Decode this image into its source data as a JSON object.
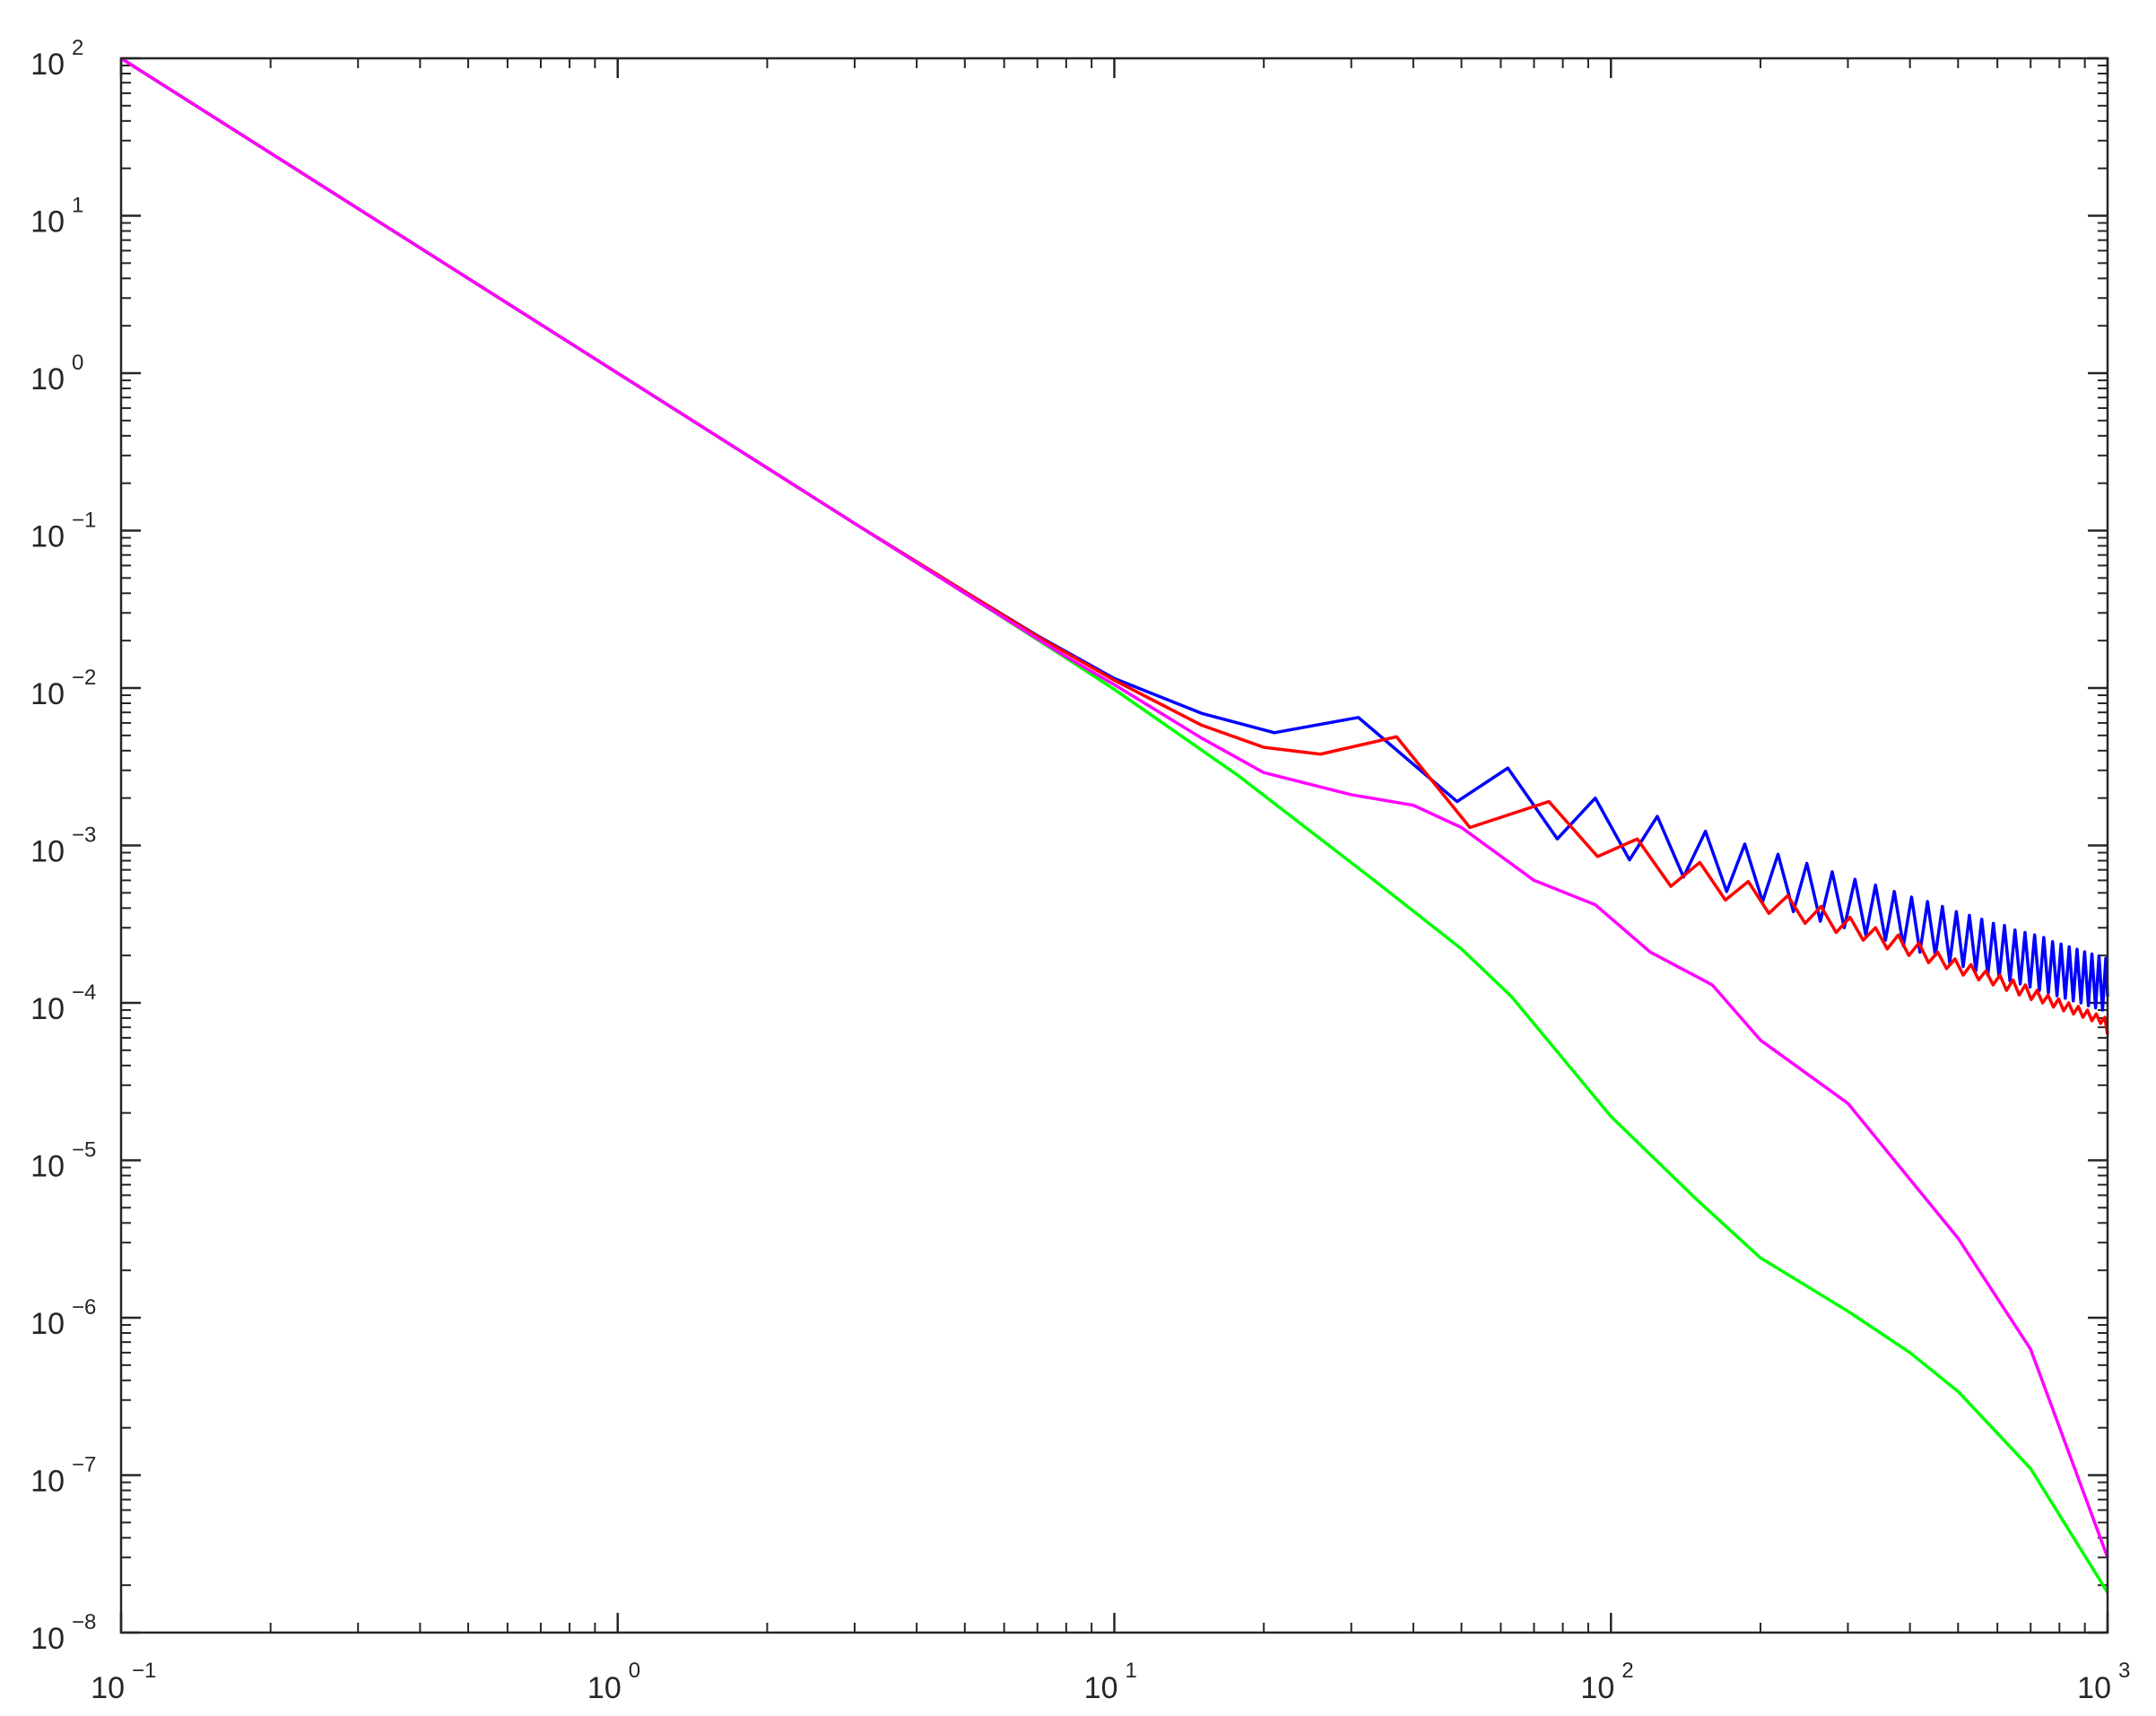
{
  "chart_data": {
    "type": "line",
    "log_x": true,
    "log_y": true,
    "grid": false,
    "xlim": [
      0.1,
      1000
    ],
    "ylim": [
      1e-08,
      100
    ],
    "xticks": [
      {
        "value": 0.1,
        "label": "10",
        "exponent": "−1"
      },
      {
        "value": 1,
        "label": "10",
        "exponent": "0"
      },
      {
        "value": 10,
        "label": "10",
        "exponent": "1"
      },
      {
        "value": 100,
        "label": "10",
        "exponent": "2"
      },
      {
        "value": 1000,
        "label": "10",
        "exponent": "3"
      }
    ],
    "yticks": [
      {
        "value": 1e-08,
        "label": "10",
        "exponent": "−8"
      },
      {
        "value": 1e-07,
        "label": "10",
        "exponent": "−7"
      },
      {
        "value": 1e-06,
        "label": "10",
        "exponent": "−6"
      },
      {
        "value": 1e-05,
        "label": "10",
        "exponent": "−5"
      },
      {
        "value": 0.0001,
        "label": "10",
        "exponent": "−4"
      },
      {
        "value": 0.001,
        "label": "10",
        "exponent": "−3"
      },
      {
        "value": 0.01,
        "label": "10",
        "exponent": "−2"
      },
      {
        "value": 0.1,
        "label": "10",
        "exponent": "−1"
      },
      {
        "value": 1,
        "label": "10",
        "exponent": "0"
      },
      {
        "value": 10,
        "label": "10",
        "exponent": "1"
      },
      {
        "value": 100,
        "label": "10",
        "exponent": "2"
      }
    ],
    "xminorticks": [
      0.2,
      0.3,
      0.4,
      0.5,
      0.6,
      0.7,
      0.8,
      0.9,
      2,
      3,
      4,
      5,
      6,
      7,
      8,
      9,
      20,
      30,
      40,
      50,
      60,
      70,
      80,
      90,
      200,
      300,
      400,
      500,
      600,
      700,
      800,
      900
    ],
    "yminorticks": [
      2e-08,
      3e-08,
      4e-08,
      5e-08,
      6e-08,
      7e-08,
      8e-08,
      9e-08,
      2e-07,
      3e-07,
      4e-07,
      5e-07,
      6e-07,
      7e-07,
      8e-07,
      9e-07,
      2e-06,
      3e-06,
      4e-06,
      5e-06,
      6e-06,
      7e-06,
      8e-06,
      9e-06,
      2e-05,
      3e-05,
      4e-05,
      5e-05,
      6e-05,
      7e-05,
      8e-05,
      9e-05,
      0.0002,
      0.0003,
      0.0004,
      0.0005,
      0.0006,
      0.0007,
      0.0008,
      0.0009,
      0.002,
      0.003,
      0.004,
      0.005,
      0.006,
      0.007,
      0.008,
      0.009,
      0.02,
      0.03,
      0.04,
      0.05,
      0.06,
      0.07,
      0.08,
      0.09,
      0.2,
      0.3,
      0.4,
      0.5,
      0.6,
      0.7,
      0.8,
      0.9,
      2,
      3,
      4,
      5,
      6,
      7,
      8,
      9,
      20,
      30,
      40,
      50,
      60,
      70,
      80,
      90
    ],
    "series": [
      {
        "color": "#0000ff",
        "x": [
          0.1,
          0.2,
          0.5,
          1,
          2,
          3,
          5,
          7,
          10,
          15,
          21,
          31,
          49,
          62,
          78,
          93,
          109,
          124,
          140,
          155,
          171,
          186,
          202,
          217,
          233,
          248,
          264,
          279,
          295,
          310,
          326,
          341,
          357,
          372,
          388,
          403,
          419,
          434,
          450,
          465,
          481,
          496,
          512,
          527,
          543,
          558,
          574,
          589,
          605,
          620,
          636,
          651,
          667,
          682,
          698,
          713,
          729,
          744,
          760,
          775,
          791,
          806,
          822,
          837,
          853,
          868,
          884,
          899,
          915,
          930,
          946,
          961,
          977,
          992,
          1000
        ],
        "values": [
          100,
          25,
          4,
          1,
          0.25,
          0.111,
          0.041,
          0.0215,
          0.0115,
          0.0069,
          0.0052,
          0.0065,
          0.0019,
          0.0031,
          0.0011,
          0.002,
          0.00081,
          0.00153,
          0.00063,
          0.00123,
          0.00051,
          0.00102,
          0.00044,
          0.00088,
          0.00038,
          0.00077,
          0.00033,
          0.00068,
          0.0003,
          0.00061,
          0.00027,
          0.00056,
          0.00025,
          0.00051,
          0.00023,
          0.00047,
          0.00021,
          0.00044,
          0.0002,
          0.00041,
          0.00018,
          0.00038,
          0.00017,
          0.00036,
          0.00016,
          0.00034,
          0.00015,
          0.00032,
          0.000145,
          0.00031,
          0.000138,
          0.00029,
          0.000132,
          0.00028,
          0.000126,
          0.00027,
          0.00012,
          0.00026,
          0.000116,
          0.000245,
          0.000111,
          0.000236,
          0.000107,
          0.000227,
          0.000103,
          0.000219,
          0.0001,
          0.000211,
          9.6e-05,
          0.000204,
          9.3e-05,
          0.000198,
          9e-05,
          0.000192,
          0.00011
        ]
      },
      {
        "color": "#ff0000",
        "x": [
          0.1,
          0.2,
          0.5,
          1,
          2,
          3,
          5,
          7,
          10,
          15,
          20,
          26,
          37,
          52,
          75,
          94,
          113,
          132,
          151,
          170,
          189,
          208,
          227,
          246,
          265,
          284,
          303,
          322,
          341,
          360,
          379,
          398,
          417,
          436,
          455,
          474,
          493,
          512,
          531,
          550,
          569,
          588,
          607,
          626,
          645,
          664,
          683,
          702,
          721,
          740,
          759,
          778,
          797,
          816,
          835,
          854,
          873,
          892,
          911,
          930,
          949,
          968,
          987,
          1000
        ],
        "values": [
          100,
          25,
          4,
          1,
          0.25,
          0.111,
          0.041,
          0.0213,
          0.0112,
          0.0058,
          0.0042,
          0.0038,
          0.0049,
          0.0013,
          0.0019,
          0.00085,
          0.0011,
          0.00055,
          0.00078,
          0.00045,
          0.00059,
          0.00037,
          0.00048,
          0.00032,
          0.00041,
          0.00028,
          0.00035,
          0.00025,
          0.0003,
          0.00022,
          0.00027,
          0.0002,
          0.00024,
          0.00018,
          0.00021,
          0.000165,
          0.00019,
          0.00015,
          0.000175,
          0.00014,
          0.00016,
          0.00013,
          0.00015,
          0.00012,
          0.00014,
          0.000112,
          0.00013,
          0.000105,
          0.00012,
          0.0001,
          0.000112,
          9.4e-05,
          0.000106,
          8.9e-05,
          0.0001,
          8.5e-05,
          9.5e-05,
          8.1e-05,
          9e-05,
          7.7e-05,
          8.5e-05,
          7.4e-05,
          8.1e-05,
          6.3e-05
        ]
      },
      {
        "color": "#00ff00",
        "x": [
          0.1,
          0.3,
          1,
          3,
          5,
          8,
          10,
          17.7,
          33.6,
          50,
          63,
          100,
          150,
          200,
          300,
          400,
          500,
          700,
          1000
        ],
        "values": [
          100,
          11.1,
          1,
          0.111,
          0.04,
          0.0155,
          0.0098,
          0.0028,
          0.00059,
          0.00022,
          0.00011,
          1.9e-05,
          5.5e-06,
          2.4e-06,
          1.1e-06,
          6e-07,
          3.4e-07,
          1.1e-07,
          1.8e-08
        ]
      },
      {
        "color": "#ff00ff",
        "x": [
          0.1,
          0.3,
          1,
          3,
          5,
          8,
          10,
          15,
          20,
          30,
          40,
          50,
          70,
          93,
          120,
          160,
          200,
          300,
          500,
          700,
          1000
        ],
        "values": [
          100,
          11.1,
          1,
          0.111,
          0.04,
          0.0158,
          0.0105,
          0.0048,
          0.0029,
          0.0021,
          0.0018,
          0.0013,
          0.0006,
          0.00042,
          0.00021,
          0.00013,
          5.8e-05,
          2.3e-05,
          3.2e-06,
          6.3e-07,
          3e-08
        ]
      }
    ]
  }
}
